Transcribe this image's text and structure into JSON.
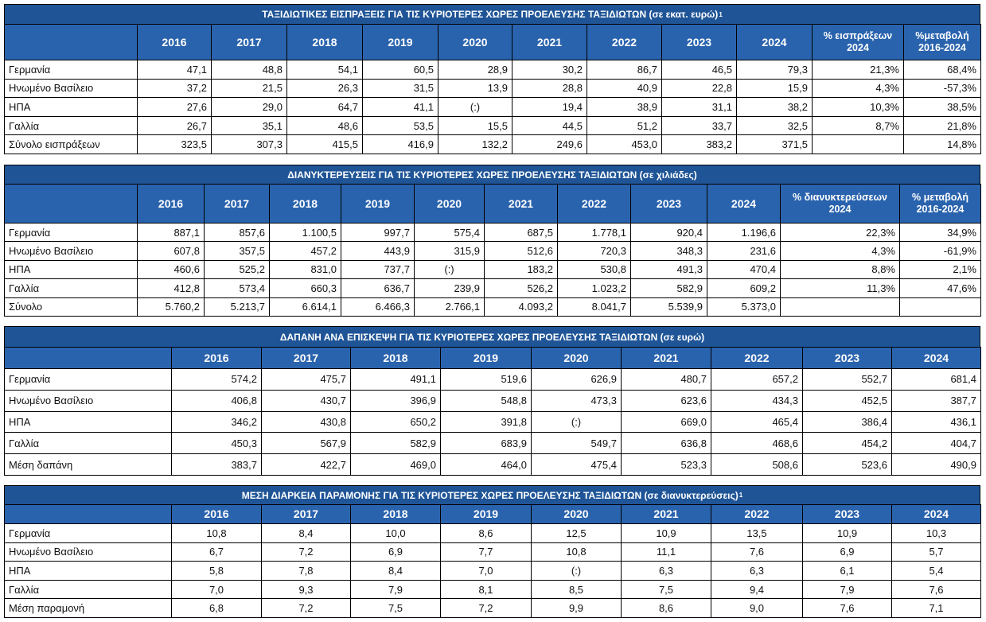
{
  "tables": [
    {
      "title": "ΤΑΞΙΔΙΩΤΙΚΕΣ ΕΙΣΠΡΑΞΕΙΣ ΓΙΑ ΤΙΣ ΚΥΡΙΟΤΕΡΕΣ ΧΩΡΕΣ ΠΡΟΕΛΕΥΣΗΣ ΤΑΞΙΔΙΩΤΩΝ (σε εκατ. ευρώ)",
      "title_note": "1",
      "header": [
        "2016",
        "2017",
        "2018",
        "2019",
        "2020",
        "2021",
        "2022",
        "2023",
        "2024",
        "% εισπράξεων 2024",
        "%μεταβολή 2016-2024"
      ],
      "rows": [
        [
          "Γερμανία",
          "47,1",
          "48,8",
          "54,1",
          "60,5",
          "28,9",
          "30,2",
          "86,7",
          "46,5",
          "79,3",
          "21,3%",
          "68,4%"
        ],
        [
          "Ηνωμένο Βασίλειο",
          "37,2",
          "21,5",
          "26,3",
          "31,5",
          "13,9",
          "28,8",
          "40,9",
          "22,8",
          "15,9",
          "4,3%",
          "-57,3%"
        ],
        [
          "ΗΠΑ",
          "27,6",
          "29,0",
          "64,7",
          "41,1",
          "(:)",
          "19,4",
          "38,9",
          "31,1",
          "38,2",
          "10,3%",
          "38,5%"
        ],
        [
          "Γαλλία",
          "26,7",
          "35,1",
          "48,6",
          "53,5",
          "15,5",
          "44,5",
          "51,2",
          "33,7",
          "32,5",
          "8,7%",
          "21,8%"
        ],
        [
          "Σύνολο εισπράξεων",
          "323,5",
          "307,3",
          "415,5",
          "416,9",
          "132,2",
          "249,6",
          "453,0",
          "383,2",
          "371,5",
          null,
          "14,8%"
        ]
      ]
    },
    {
      "title": "ΔΙΑΝΥΚΤΕΡΕΥΣΕΙΣ ΓΙΑ ΤΙΣ ΚΥΡΙΟΤΕΡΕΣ ΧΩΡΕΣ ΠΡΟΕΛΕΥΣΗΣ ΤΑΞΙΔΙΩΤΩΝ (σε χιλιάδες)",
      "header": [
        "2016",
        "2017",
        "2018",
        "2019",
        "2020",
        "2021",
        "2022",
        "2023",
        "2024",
        "% διανυκτερεύσεων 2024",
        "% μεταβολή 2016-2024"
      ],
      "rows": [
        [
          "Γερμανία",
          "887,1",
          "857,6",
          "1.100,5",
          "997,7",
          "575,4",
          "687,5",
          "1.778,1",
          "920,4",
          "1.196,6",
          "22,3%",
          "34,9%"
        ],
        [
          "Ηνωμένο Βασίλειο",
          "607,8",
          "357,5",
          "457,2",
          "443,9",
          "315,9",
          "512,6",
          "720,3",
          "348,3",
          "231,6",
          "4,3%",
          "-61,9%"
        ],
        [
          "ΗΠΑ",
          "460,6",
          "525,2",
          "831,0",
          "737,7",
          "(:)",
          "183,2",
          "530,8",
          "491,3",
          "470,4",
          "8,8%",
          "2,1%"
        ],
        [
          "Γαλλία",
          "412,8",
          "573,4",
          "660,3",
          "636,7",
          "239,9",
          "526,2",
          "1.023,2",
          "582,9",
          "609,2",
          "11,3%",
          "47,6%"
        ],
        [
          "Σύνολο",
          "5.760,2",
          "5.213,7",
          "6.614,1",
          "6.466,3",
          "2.766,1",
          "4.093,2",
          "8.041,7",
          "5.539,9",
          "5.373,0",
          null,
          null
        ]
      ]
    },
    {
      "title": "ΔΑΠΑΝΗ ΑΝΑ ΕΠΙΣΚΕΨΗ ΓΙΑ ΤΙΣ ΚΥΡΙΟΤΕΡΕΣ ΧΩΡΕΣ ΠΡΟΕΛΕΥΣΗΣ ΤΑΞΙΔΙΩΤΩΝ (σε ευρώ)",
      "header": [
        "2016",
        "2017",
        "2018",
        "2019",
        "2020",
        "2021",
        "2022",
        "2023",
        "2024"
      ],
      "rows": [
        [
          "Γερμανία",
          "574,2",
          "475,7",
          "491,1",
          "519,6",
          "626,9",
          "480,7",
          "657,2",
          "552,7",
          "681,4"
        ],
        [
          "Ηνωμένο Βασίλειο",
          "406,8",
          "430,7",
          "396,9",
          "548,8",
          "473,3",
          "623,6",
          "434,3",
          "452,5",
          "387,7"
        ],
        [
          "ΗΠΑ",
          "346,2",
          "430,8",
          "650,2",
          "391,8",
          "(:)",
          "669,0",
          "465,4",
          "386,4",
          "436,1"
        ],
        [
          "Γαλλία",
          "450,3",
          "567,9",
          "582,9",
          "683,9",
          "549,7",
          "636,8",
          "468,6",
          "454,2",
          "404,7"
        ],
        [
          "Μέση δαπάνη",
          "383,7",
          "422,7",
          "469,0",
          "464,0",
          "475,4",
          "523,3",
          "508,6",
          "523,6",
          "490,9"
        ]
      ]
    },
    {
      "title": "ΜΕΣΗ ΔΙΑΡΚΕΙΑ ΠΑΡΑΜΟΝΗΣ ΓΙΑ ΤΙΣ ΚΥΡΙΟΤΕΡΕΣ ΧΩΡΕΣ ΠΡΟΕΛΕΥΣΗΣ ΤΑΞΙΔΙΩΤΩΝ (σε διανυκτερεύσεις)",
      "title_note": "1",
      "header": [
        "2016",
        "2017",
        "2018",
        "2019",
        "2020",
        "2021",
        "2022",
        "2023",
        "2024"
      ],
      "rows": [
        [
          "Γερμανία",
          "10,8",
          "8,4",
          "10,0",
          "8,6",
          "12,5",
          "10,9",
          "13,5",
          "10,9",
          "10,3"
        ],
        [
          "Ηνωμένο Βασίλειο",
          "6,7",
          "7,2",
          "6,9",
          "7,7",
          "10,8",
          "11,1",
          "7,6",
          "6,9",
          "5,7"
        ],
        [
          "ΗΠΑ",
          "5,8",
          "7,8",
          "8,4",
          "7,0",
          "(:)",
          "6,3",
          "6,3",
          "6,1",
          "5,4"
        ],
        [
          "Γαλλία",
          "7,0",
          "9,3",
          "7,9",
          "8,1",
          "8,5",
          "7,5",
          "9,4",
          "7,9",
          "7,6"
        ],
        [
          "Μέση παραμονή",
          "6,8",
          "7,2",
          "7,5",
          "7,2",
          "9,9",
          "8,6",
          "9,0",
          "7,6",
          "7,1"
        ]
      ]
    }
  ]
}
